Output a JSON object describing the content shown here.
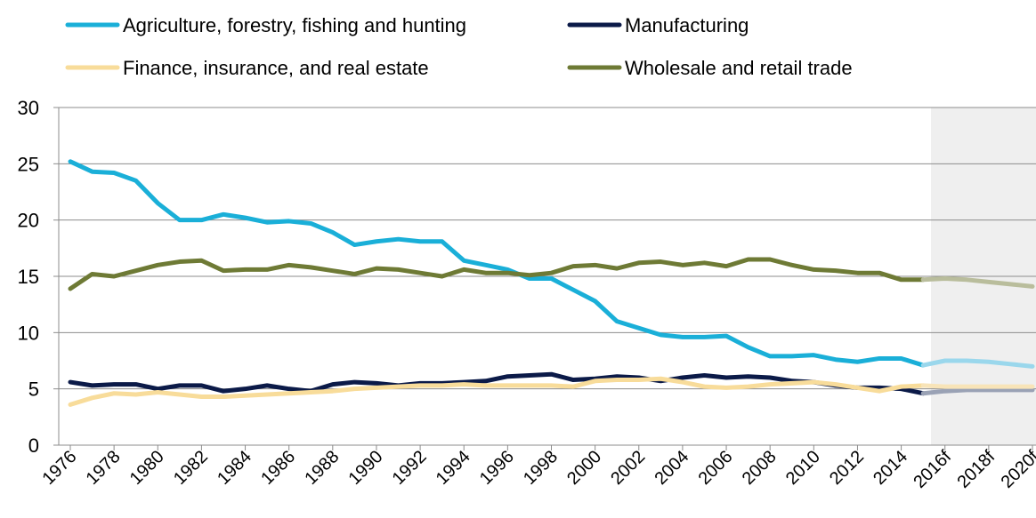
{
  "chart_data": {
    "type": "line",
    "title": "",
    "xlabel": "",
    "ylabel": "",
    "ylim": [
      0,
      30
    ],
    "yticks": [
      0,
      5,
      10,
      15,
      20,
      25,
      30
    ],
    "grid": true,
    "legend_position": "top",
    "forecast_shaded": true,
    "x": [
      "1976",
      "1977",
      "1978",
      "1979",
      "1980",
      "1981",
      "1982",
      "1983",
      "1984",
      "1985",
      "1986",
      "1987",
      "1988",
      "1989",
      "1990",
      "1991",
      "1992",
      "1993",
      "1994",
      "1995",
      "1996",
      "1997",
      "1998",
      "1999",
      "2000",
      "2001",
      "2002",
      "2003",
      "2004",
      "2005",
      "2006",
      "2007",
      "2008",
      "2009",
      "2010",
      "2011",
      "2012",
      "2013",
      "2014",
      "2015",
      "2016f",
      "2017f",
      "2018f",
      "2019f",
      "2020f"
    ],
    "tick_labels": [
      "1976",
      "1978",
      "1980",
      "1982",
      "1984",
      "1986",
      "1988",
      "1990",
      "1992",
      "1994",
      "1996",
      "1998",
      "2000",
      "2002",
      "2004",
      "2006",
      "2008",
      "2010",
      "2012",
      "2014",
      "2016f",
      "2018f",
      "2020f"
    ],
    "series": [
      {
        "name": "Agriculture, forestry, fishing and hunting",
        "color": "#1aafd8",
        "forecast_color": "#9ad7ec",
        "values": [
          25.2,
          24.3,
          24.2,
          23.5,
          21.5,
          20.0,
          20.0,
          20.5,
          20.2,
          19.8,
          19.9,
          19.7,
          18.9,
          17.8,
          18.1,
          18.3,
          18.1,
          18.1,
          16.4,
          16.0,
          15.6,
          14.8,
          14.8,
          13.8,
          12.8,
          11.0,
          10.4,
          9.8,
          9.6,
          9.6,
          9.7,
          8.7,
          7.9,
          7.9,
          8.0,
          7.6,
          7.4,
          7.7,
          7.7,
          7.1,
          7.5,
          7.5,
          7.4,
          7.2,
          7.0
        ]
      },
      {
        "name": "Manufacturing",
        "color": "#0b1a48",
        "forecast_color": "#9aa2b5",
        "values": [
          5.6,
          5.3,
          5.4,
          5.4,
          5.0,
          5.3,
          5.3,
          4.8,
          5.0,
          5.3,
          5.0,
          4.8,
          5.4,
          5.6,
          5.5,
          5.3,
          5.5,
          5.5,
          5.6,
          5.7,
          6.1,
          6.2,
          6.3,
          5.8,
          5.9,
          6.1,
          6.0,
          5.7,
          6.0,
          6.2,
          6.0,
          6.1,
          6.0,
          5.7,
          5.6,
          5.3,
          5.1,
          5.1,
          5.0,
          4.6,
          4.8,
          4.9,
          4.9,
          4.9,
          4.9
        ]
      },
      {
        "name": "Finance, insurance, and real estate",
        "color": "#f8dc9a",
        "forecast_color": "#f8e4b8",
        "values": [
          3.6,
          4.2,
          4.6,
          4.5,
          4.7,
          4.5,
          4.3,
          4.3,
          4.4,
          4.5,
          4.6,
          4.7,
          4.8,
          5.0,
          5.1,
          5.2,
          5.3,
          5.3,
          5.4,
          5.3,
          5.3,
          5.3,
          5.3,
          5.2,
          5.7,
          5.8,
          5.8,
          5.9,
          5.6,
          5.2,
          5.1,
          5.2,
          5.4,
          5.5,
          5.6,
          5.4,
          5.1,
          4.8,
          5.2,
          5.3,
          5.2,
          5.2,
          5.2,
          5.2,
          5.2
        ]
      },
      {
        "name": "Wholesale and retail trade",
        "color": "#6e7a35",
        "forecast_color": "#b9bd9c",
        "values": [
          13.9,
          15.2,
          15.0,
          15.5,
          16.0,
          16.3,
          16.4,
          15.5,
          15.6,
          15.6,
          16.0,
          15.8,
          15.5,
          15.2,
          15.7,
          15.6,
          15.3,
          15.0,
          15.6,
          15.3,
          15.3,
          15.1,
          15.3,
          15.9,
          16.0,
          15.7,
          16.2,
          16.3,
          16.0,
          16.2,
          15.9,
          16.5,
          16.5,
          16.0,
          15.6,
          15.5,
          15.3,
          15.3,
          14.7,
          14.7,
          14.8,
          14.7,
          14.5,
          14.3,
          14.1
        ]
      }
    ]
  }
}
